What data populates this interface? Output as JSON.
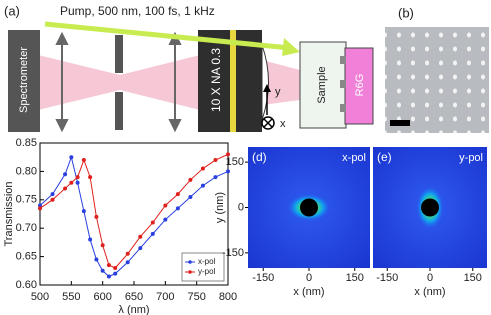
{
  "panels": {
    "a": {
      "label": "(a)",
      "pump": "Pump, 500 nm, 100 fs, 1 kHz",
      "spectrometer": "Spectrometer",
      "objective": "10 X NA 0.3",
      "axis_y": "y",
      "axis_x": "x",
      "sample": "Sample",
      "dye": "R6G"
    },
    "b": {
      "label": "(b)"
    }
  },
  "chart_data": [
    {
      "type": "line",
      "xlabel": "λ (nm)",
      "ylabel": "Transmission",
      "x": [
        500,
        520,
        540,
        550,
        560,
        570,
        580,
        590,
        600,
        610,
        620,
        640,
        660,
        680,
        700,
        720,
        740,
        760,
        780,
        800
      ],
      "series": [
        {
          "name": "x-pol",
          "color": "#2a3fe0",
          "values": [
            0.74,
            0.76,
            0.795,
            0.825,
            0.78,
            0.73,
            0.68,
            0.645,
            0.625,
            0.615,
            0.62,
            0.64,
            0.665,
            0.69,
            0.715,
            0.735,
            0.755,
            0.775,
            0.79,
            0.8
          ]
        },
        {
          "name": "y-pol",
          "color": "#e0201c",
          "values": [
            0.735,
            0.75,
            0.77,
            0.78,
            0.79,
            0.82,
            0.79,
            0.72,
            0.67,
            0.635,
            0.63,
            0.655,
            0.685,
            0.71,
            0.74,
            0.76,
            0.785,
            0.805,
            0.82,
            0.83
          ]
        }
      ],
      "xlim": [
        500,
        800
      ],
      "xticks": [
        500,
        550,
        600,
        650,
        700,
        750,
        800
      ],
      "ylim": [
        0.6,
        0.85
      ],
      "yticks": [
        {
          "value": 0.6,
          "label": "0.60"
        },
        0.65,
        {
          "value": 0.7,
          "label": "0.70"
        },
        0.75,
        {
          "value": 0.8,
          "label": "0.80"
        },
        0.85
      ],
      "legend": "lower right"
    },
    {
      "type": "heatmap",
      "label": "(d)",
      "annotation": "x-pol",
      "xlabel": "x (nm)",
      "ylabel": "y (nm)",
      "xlim": [
        -200,
        200
      ],
      "ylim": [
        -200,
        200
      ],
      "xticks": [
        -150,
        0,
        150
      ],
      "yticks": [
        -150,
        0,
        150
      ],
      "orientation": "horizontal"
    },
    {
      "type": "heatmap",
      "label": "(e)",
      "annotation": "y-pol",
      "xlabel": "x (nm)",
      "xlim": [
        -200,
        200
      ],
      "ylim": [
        -200,
        200
      ],
      "xticks": [
        -150,
        0,
        150
      ],
      "orientation": "vertical"
    }
  ]
}
